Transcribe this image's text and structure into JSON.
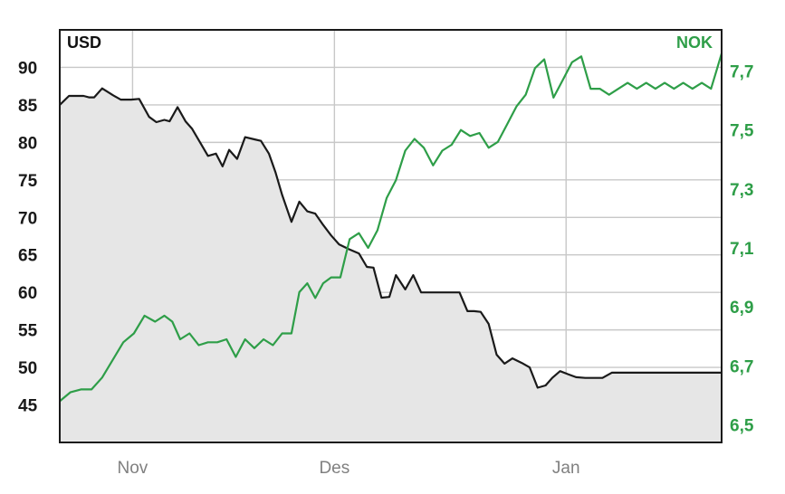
{
  "chart_data": {
    "type": "line",
    "title": "",
    "left_axis": {
      "unit_label": "USD",
      "ylim": [
        40,
        95
      ],
      "ticks": [
        45,
        50,
        55,
        60,
        65,
        70,
        75,
        80,
        85,
        90
      ],
      "tick_labels": [
        "45",
        "50",
        "55",
        "60",
        "65",
        "70",
        "75",
        "80",
        "85",
        "90"
      ]
    },
    "right_axis": {
      "unit_label": "NOK",
      "ylim": [
        6.44,
        7.84
      ],
      "ticks": [
        6.5,
        6.7,
        6.9,
        7.1,
        7.3,
        7.5,
        7.7
      ],
      "tick_labels": [
        "6,5",
        "6,7",
        "6,9",
        "7,1",
        "7,3",
        "7,5",
        "7,7"
      ]
    },
    "x_axis": {
      "range": [
        0,
        100
      ],
      "ticks": [
        11,
        41.5,
        76.5
      ],
      "tick_labels": [
        "Nov",
        "Des",
        "Jan"
      ]
    },
    "grid": true,
    "colors": {
      "usd_line": "#1a1a1a",
      "usd_fill": "#e6e6e6",
      "nok_line": "#2e9e48",
      "grid": "#c8c8c8",
      "frame": "#1a1a1a"
    },
    "series": [
      {
        "name": "USD",
        "axis": "left",
        "x": [
          0,
          1.4,
          3.6,
          4.4,
          5.2,
          6.4,
          8.0,
          9.2,
          10.8,
          12.0,
          13.5,
          14.6,
          15.8,
          16.6,
          17.8,
          19.0,
          20.0,
          21.2,
          22.4,
          23.6,
          24.6,
          25.6,
          26.8,
          28.0,
          29.4,
          30.4,
          31.6,
          32.6,
          33.6,
          35.0,
          36.2,
          37.4,
          38.6,
          39.8,
          41.0,
          42.2,
          43.6,
          45.2,
          46.4,
          47.4,
          48.6,
          49.8,
          50.8,
          52.2,
          53.4,
          54.6,
          55.8,
          57.2,
          58.2,
          59.2,
          60.4,
          61.6,
          62.6,
          63.6,
          64.8,
          66.0,
          67.2,
          68.4,
          69.8,
          71.0,
          72.2,
          73.4,
          74.4,
          75.6,
          76.8,
          78.0,
          79.4,
          80.8,
          82.0,
          83.4,
          84.8,
          86.2,
          87.4,
          88.8,
          90.4,
          92.0,
          93.6,
          95.2,
          96.6,
          98.0,
          99.4,
          100
        ],
        "values": [
          85,
          86.2,
          86.2,
          86.0,
          86.0,
          87.2,
          86.3,
          85.7,
          85.7,
          85.8,
          83.4,
          82.7,
          83.0,
          82.8,
          84.7,
          82.8,
          81.8,
          80.0,
          78.2,
          78.5,
          76.8,
          79.0,
          77.8,
          80.7,
          80.4,
          80.2,
          78.5,
          76.0,
          73.0,
          69.4,
          72.1,
          70.8,
          70.5,
          69.0,
          67.6,
          66.4,
          65.8,
          65.2,
          63.4,
          63.3,
          59.3,
          59.4,
          62.3,
          60.4,
          62.3,
          60.0,
          60.0,
          60.0,
          60.0,
          60.0,
          60.0,
          57.5,
          57.5,
          57.4,
          55.8,
          51.7,
          50.5,
          51.2,
          50.6,
          50.0,
          47.3,
          47.6,
          48.6,
          49.5,
          49.1,
          48.7,
          48.6,
          48.6,
          48.6,
          49.3,
          49.3,
          49.3,
          49.3,
          49.3,
          49.3,
          49.3,
          49.3,
          49.3,
          49.3,
          49.3,
          49.3,
          49.3
        ]
      },
      {
        "name": "NOK",
        "axis": "right",
        "x": [
          0,
          1.6,
          3.2,
          4.8,
          6.4,
          8.0,
          9.6,
          11.2,
          12.8,
          14.4,
          15.8,
          17.0,
          18.2,
          19.6,
          21.0,
          22.4,
          23.8,
          25.2,
          26.6,
          28.0,
          29.4,
          30.8,
          32.2,
          33.6,
          35.0,
          36.2,
          37.4,
          38.6,
          39.8,
          41.0,
          42.4,
          43.8,
          45.2,
          46.6,
          48.0,
          49.4,
          50.8,
          52.2,
          53.6,
          55.0,
          56.4,
          57.8,
          59.2,
          60.6,
          62.0,
          63.4,
          64.8,
          66.2,
          67.6,
          69.0,
          70.4,
          71.8,
          73.2,
          74.6,
          76.0,
          77.4,
          78.8,
          80.2,
          81.6,
          83.0,
          84.4,
          85.8,
          87.2,
          88.6,
          90.0,
          91.4,
          92.8,
          94.2,
          95.6,
          97.0,
          98.4,
          99.2,
          100
        ],
        "values": [
          6.58,
          6.61,
          6.62,
          6.62,
          6.66,
          6.72,
          6.78,
          6.81,
          6.87,
          6.85,
          6.87,
          6.85,
          6.79,
          6.81,
          6.77,
          6.78,
          6.78,
          6.79,
          6.73,
          6.79,
          6.76,
          6.79,
          6.77,
          6.81,
          6.81,
          6.95,
          6.98,
          6.93,
          6.98,
          7.0,
          7.0,
          7.13,
          7.15,
          7.1,
          7.16,
          7.27,
          7.33,
          7.43,
          7.47,
          7.44,
          7.38,
          7.43,
          7.45,
          7.5,
          7.48,
          7.49,
          7.44,
          7.46,
          7.52,
          7.58,
          7.62,
          7.71,
          7.74,
          7.61,
          7.67,
          7.73,
          7.75,
          7.64,
          7.64,
          7.62,
          7.64,
          7.66,
          7.64,
          7.66,
          7.64,
          7.66,
          7.64,
          7.66,
          7.64,
          7.66,
          7.64,
          7.7,
          7.76
        ]
      }
    ]
  }
}
